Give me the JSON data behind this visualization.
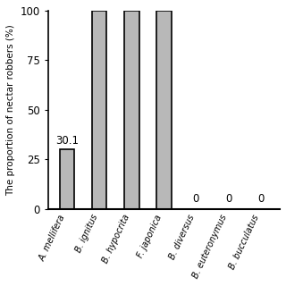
{
  "categories": [
    "A. mellifera",
    "B. ignitus",
    "B. hypocrita",
    "F. japonica",
    "B. diversus",
    "B. euteronymus",
    "B. bucculatus"
  ],
  "values": [
    30.1,
    100,
    100,
    100,
    0,
    0,
    0
  ],
  "bar_color": "#b8b8b8",
  "bar_edgecolor": "#000000",
  "bar_linewidth": 1.2,
  "ylabel": "The proportion of nectar robbers (%)",
  "ylim": [
    0,
    100
  ],
  "yticks": [
    0,
    25,
    50,
    75,
    100
  ],
  "annotations": {
    "0": "30.1",
    "1": "",
    "2": "",
    "3": "",
    "4": "0",
    "5": "0",
    "6": "0"
  },
  "figsize": [
    3.2,
    3.2
  ],
  "dpi": 100,
  "label_fontsize": 7.0,
  "ylabel_fontsize": 7.5,
  "ytick_fontsize": 8.5,
  "annotation_fontsize": 8.5,
  "bar_width": 0.45
}
